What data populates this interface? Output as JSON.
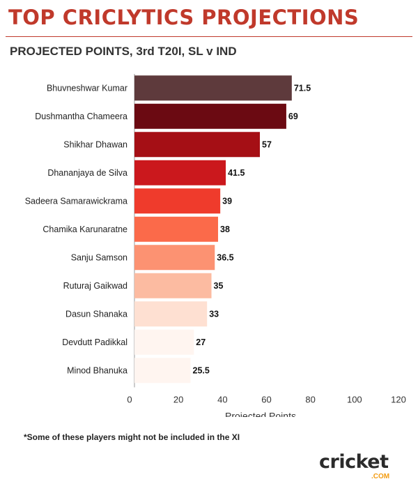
{
  "header": {
    "title": "TOP CRICLYTICS PROJECTIONS",
    "subtitle": "PROJECTED POINTS, 3rd T20I, SL v IND"
  },
  "footnote": "*Some of these players might not be included in the XI",
  "logo": {
    "word": "cricket",
    "suffix": ".COM"
  },
  "chart_data": {
    "type": "bar",
    "orientation": "horizontal",
    "categories": [
      "Bhuvneshwar Kumar",
      "Dushmantha Chameera",
      "Shikhar Dhawan",
      "Dhananjaya de Silva",
      "Sadeera Samarawickrama",
      "Chamika Karunaratne",
      "Sanju Samson",
      "Ruturaj Gaikwad",
      "Dasun Shanaka",
      "Devdutt Padikkal",
      "Minod Bhanuka"
    ],
    "values": [
      71.5,
      69,
      57,
      41.5,
      39,
      38,
      36.5,
      35,
      33,
      27,
      25.5
    ],
    "value_labels": [
      "71.5",
      "69",
      "57",
      "41.5",
      "39",
      "38",
      "36.5",
      "35",
      "33",
      "27",
      "25.5"
    ],
    "colors": [
      "#5e3a3c",
      "#6b0a12",
      "#a50f15",
      "#cb181d",
      "#ef3b2c",
      "#fb6a4a",
      "#fc9272",
      "#fcbba1",
      "#fee0d2",
      "#fff5f0",
      "#fff5f0"
    ],
    "xticks": [
      "0",
      "20",
      "40",
      "60",
      "80",
      "100",
      "120"
    ],
    "xlim": [
      0,
      120
    ],
    "xlabel": "Projected Points",
    "ylabel": "",
    "grid": false,
    "legend": "none"
  }
}
